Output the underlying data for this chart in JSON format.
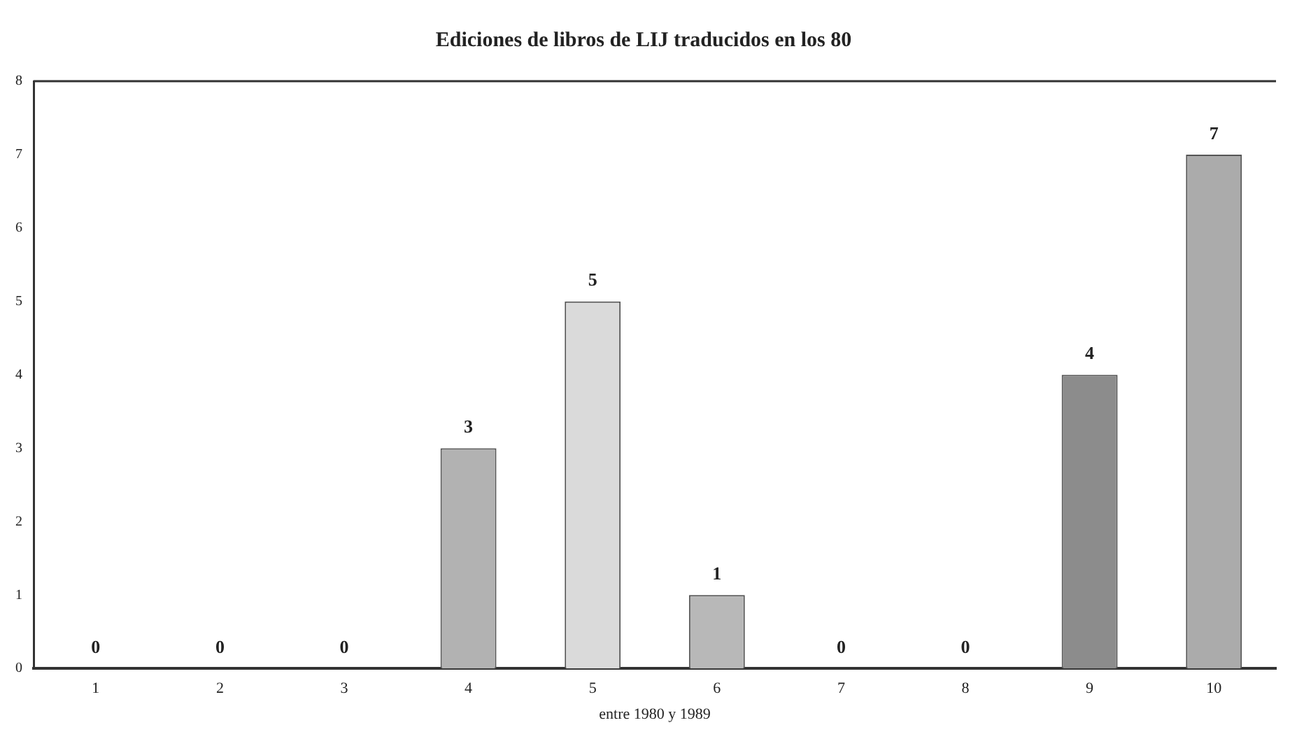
{
  "chart_data": {
    "type": "bar",
    "title": "Ediciones de libros de LIJ traducidos en los 80",
    "xlabel": "entre 1980 y 1989",
    "categories": [
      "1",
      "2",
      "3",
      "4",
      "5",
      "6",
      "7",
      "8",
      "9",
      "10"
    ],
    "values": [
      0,
      0,
      0,
      3,
      5,
      1,
      0,
      0,
      4,
      7
    ],
    "colors": [
      "#b0b0b0",
      "#b0b0b0",
      "#b0b0b0",
      "#b2b2b2",
      "#dadada",
      "#b8b8b8",
      "#b0b0b0",
      "#b0b0b0",
      "#8c8c8c",
      "#ababab"
    ],
    "ylim": [
      0,
      8
    ],
    "yticks": [
      0,
      1,
      2,
      3,
      4,
      5,
      6,
      7,
      8
    ],
    "grid": false,
    "legend": false,
    "data_labels": true
  }
}
